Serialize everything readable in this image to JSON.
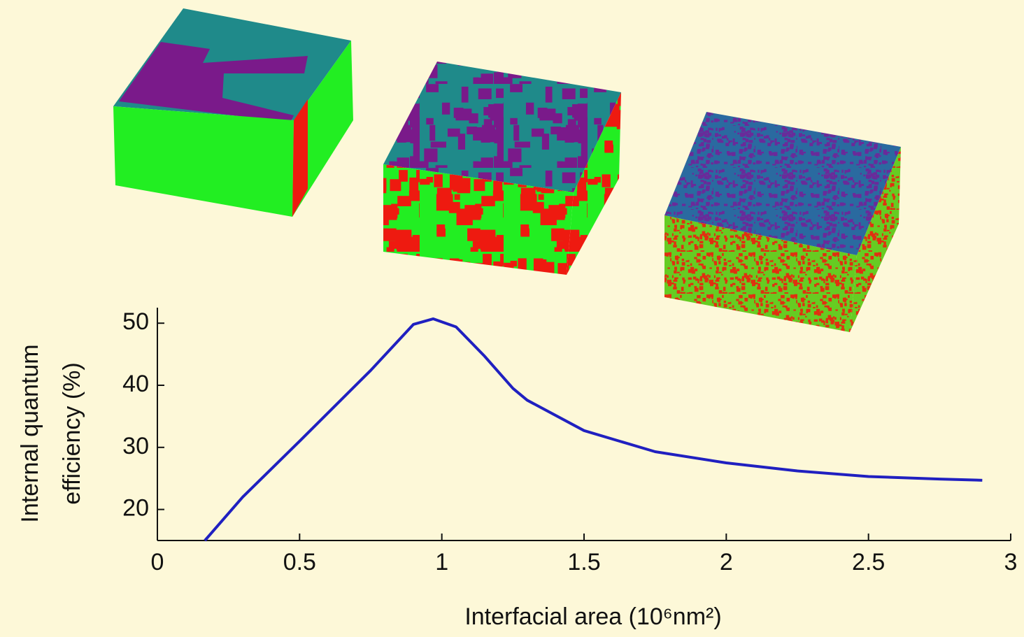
{
  "chart_data": {
    "type": "line",
    "x_label": "Interfacial area (10⁶nm²)",
    "y_label_lines": [
      "Internal quantum",
      "efficiency (%)"
    ],
    "x": [
      0.167,
      0.3,
      0.5,
      0.75,
      0.9,
      0.97,
      1.05,
      1.15,
      1.25,
      1.3,
      1.5,
      1.75,
      2,
      2.25,
      2.5,
      2.75,
      2.9
    ],
    "series": [
      {
        "color": "#2020c0",
        "values": [
          15,
          22,
          31,
          42.4,
          49.8,
          50.7,
          49.4,
          44.7,
          39.5,
          37.6,
          32.7,
          29.3,
          27.5,
          26.2,
          25.3,
          24.9,
          24.7
        ]
      }
    ],
    "xlim": [
      0,
      3
    ],
    "xticks": [
      0,
      0.5,
      1,
      1.5,
      2,
      2.5,
      3
    ],
    "ylim": [
      15,
      52.5
    ],
    "yticks": [
      20,
      30,
      40,
      50
    ]
  }
}
